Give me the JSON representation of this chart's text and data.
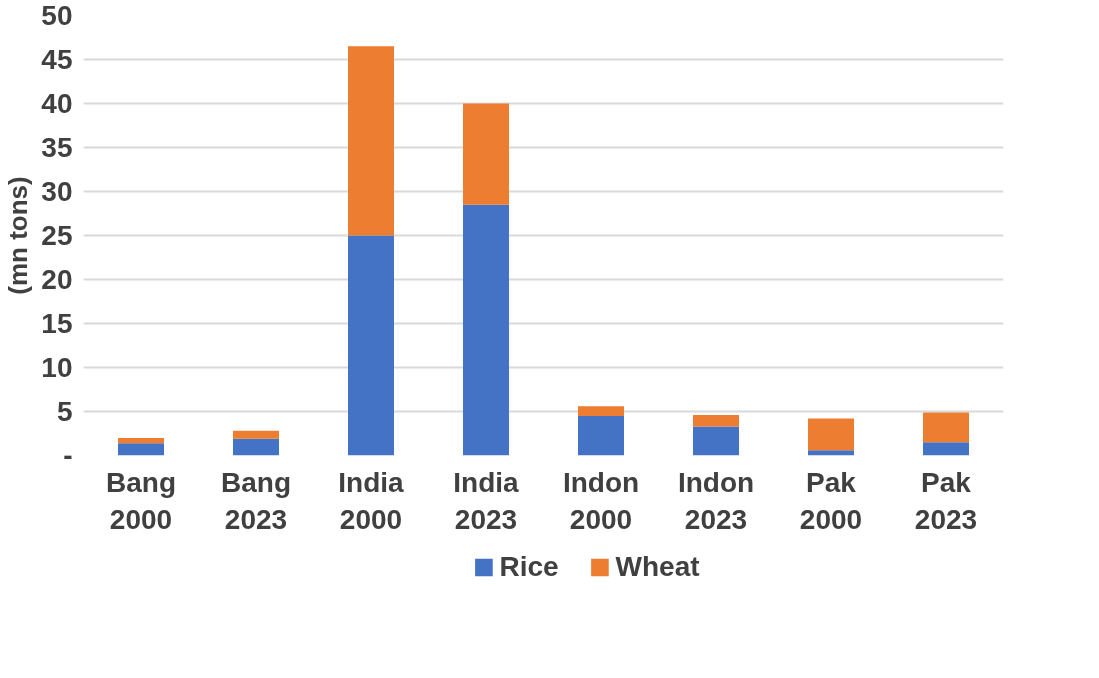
{
  "chart_data": {
    "type": "bar",
    "stacked": true,
    "ylabel": "(mn tons)",
    "categories": [
      "Bang\n2000",
      "Bang\n2023",
      "India\n2000",
      "India\n2023",
      "Indon\n2000",
      "Indon\n2023",
      "Pak\n2000",
      "Pak\n2023"
    ],
    "series": [
      {
        "name": "Rice",
        "color": "#4472c4",
        "values": [
          1.4,
          1.9,
          25,
          28.5,
          4.5,
          3.3,
          0.6,
          1.5
        ]
      },
      {
        "name": "Wheat",
        "color": "#ed7d31",
        "values": [
          0.6,
          0.9,
          21.5,
          11.5,
          1.1,
          1.3,
          3.6,
          3.4
        ]
      }
    ],
    "ylim": [
      0,
      50
    ],
    "yticks": [
      {
        "value": 0,
        "label": "-"
      },
      5,
      10,
      15,
      20,
      25,
      30,
      35,
      40,
      45,
      50
    ],
    "grid": "y",
    "legend": "bottom"
  }
}
